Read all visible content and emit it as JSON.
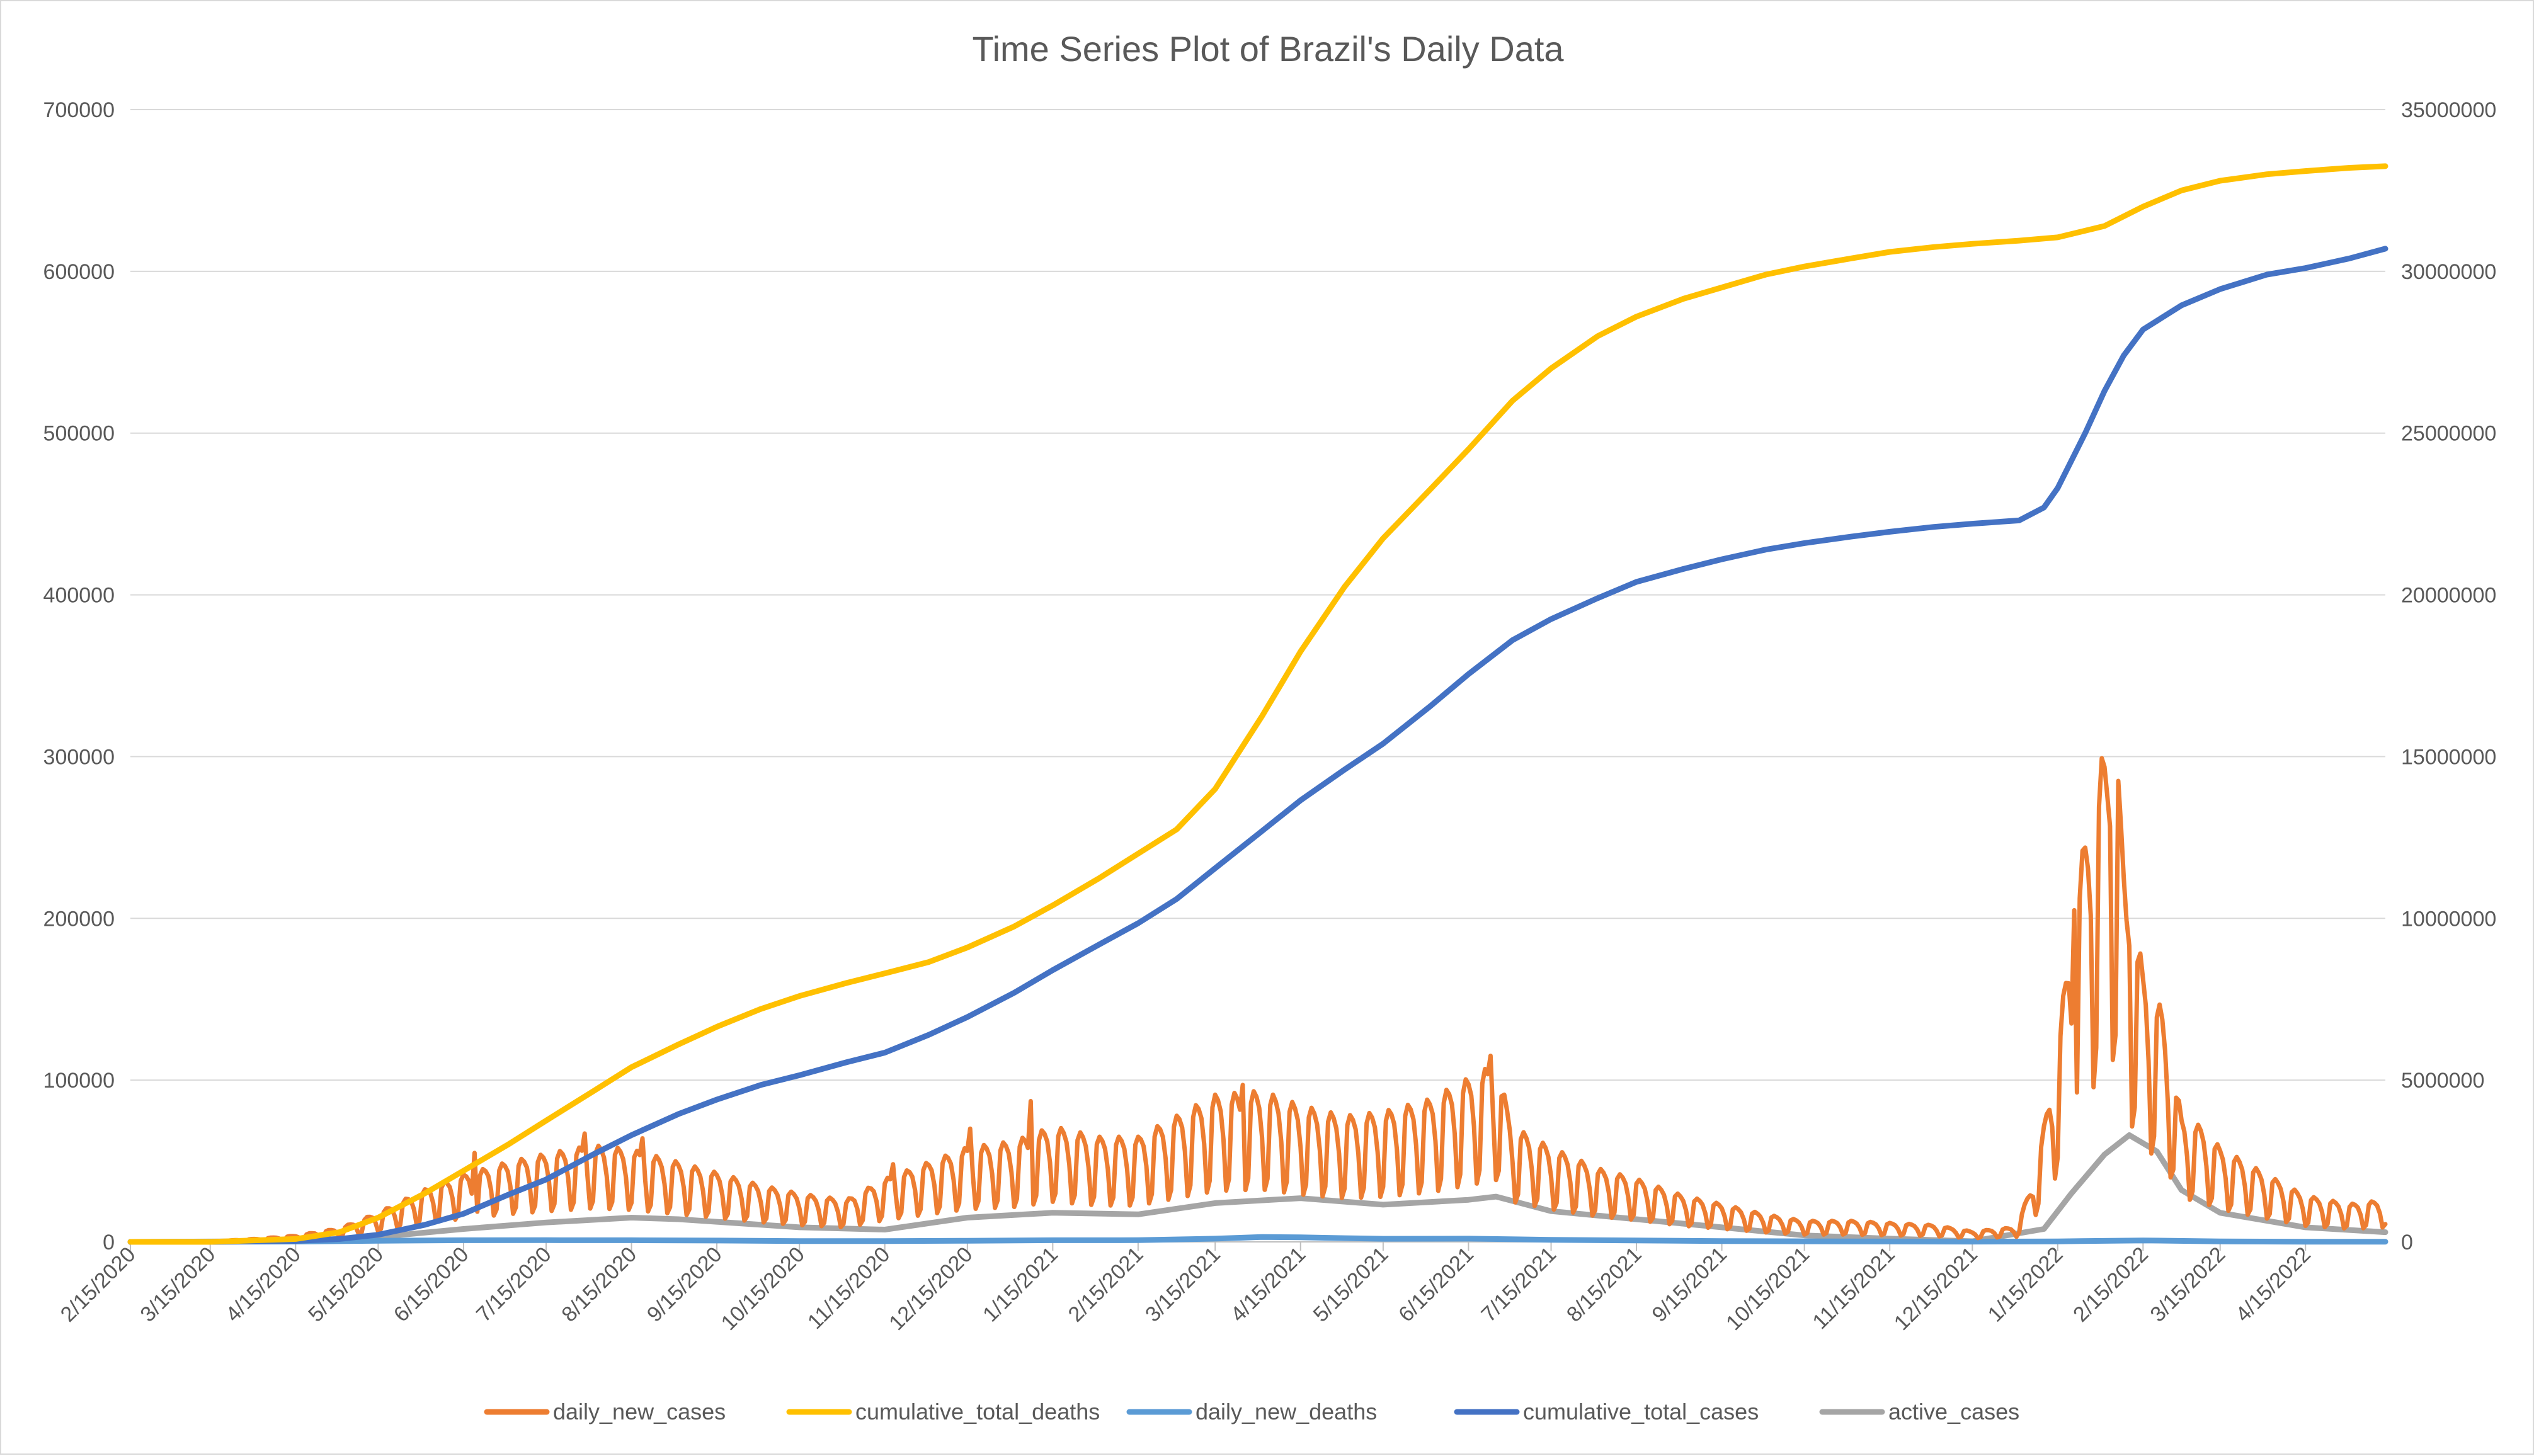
{
  "chart_data": {
    "type": "line",
    "title": "Time Series Plot of Brazil's Daily Data",
    "x_tick_labels": [
      "2/15/2020",
      "3/15/2020",
      "4/15/2020",
      "5/15/2020",
      "6/15/2020",
      "7/15/2020",
      "8/15/2020",
      "9/15/2020",
      "10/15/2020",
      "11/15/2020",
      "12/15/2020",
      "1/15/2021",
      "2/15/2021",
      "3/15/2021",
      "4/15/2021",
      "5/15/2021",
      "6/15/2021",
      "7/15/2021",
      "8/15/2021",
      "9/15/2021",
      "10/15/2021",
      "11/15/2021",
      "12/15/2021",
      "1/15/2022",
      "2/15/2022",
      "3/15/2022",
      "4/15/2022"
    ],
    "x_range": [
      "2020-02-15",
      "2022-05-14"
    ],
    "y_left": {
      "ylim": [
        0,
        700000
      ],
      "ticks": [
        "0",
        "100000",
        "200000",
        "300000",
        "400000",
        "500000",
        "600000",
        "700000"
      ]
    },
    "y_right": {
      "ylim": [
        0,
        35000000
      ],
      "ticks": [
        "0",
        "5000000",
        "10000000",
        "15000000",
        "20000000",
        "25000000",
        "30000000",
        "35000000"
      ]
    },
    "grid": true,
    "legend_position": "bottom",
    "series": [
      {
        "name": "daily_new_cases",
        "axis": "left",
        "color": "#ED7D31",
        "weekly_oscillation": true,
        "points": [
          [
            "2020-02-15",
            0
          ],
          [
            "2020-03-15",
            100
          ],
          [
            "2020-04-01",
            1500
          ],
          [
            "2020-04-15",
            3000
          ],
          [
            "2020-05-01",
            6500
          ],
          [
            "2020-05-15",
            14000
          ],
          [
            "2020-06-01",
            25000
          ],
          [
            "2020-06-15",
            32000
          ],
          [
            "2020-07-01",
            38000
          ],
          [
            "2020-07-15",
            42000
          ],
          [
            "2020-08-01",
            46000
          ],
          [
            "2020-08-15",
            44000
          ],
          [
            "2020-09-01",
            38000
          ],
          [
            "2020-09-15",
            33000
          ],
          [
            "2020-10-01",
            27000
          ],
          [
            "2020-10-15",
            23000
          ],
          [
            "2020-11-01",
            20000
          ],
          [
            "2020-11-15",
            30000
          ],
          [
            "2020-12-01",
            38000
          ],
          [
            "2020-12-15",
            45000
          ],
          [
            "2021-01-01",
            48000
          ],
          [
            "2021-01-15",
            55000
          ],
          [
            "2021-02-01",
            50000
          ],
          [
            "2021-02-15",
            50000
          ],
          [
            "2021-03-01",
            60000
          ],
          [
            "2021-03-15",
            70000
          ],
          [
            "2021-04-01",
            72000
          ],
          [
            "2021-04-15",
            65000
          ],
          [
            "2021-05-01",
            60000
          ],
          [
            "2021-05-15",
            62000
          ],
          [
            "2021-06-01",
            68000
          ],
          [
            "2021-06-15",
            78000
          ],
          [
            "2021-06-25",
            85000
          ],
          [
            "2021-07-01",
            55000
          ],
          [
            "2021-07-15",
            45000
          ],
          [
            "2021-08-01",
            35000
          ],
          [
            "2021-08-15",
            30000
          ],
          [
            "2021-09-01",
            22000
          ],
          [
            "2021-09-15",
            18000
          ],
          [
            "2021-10-01",
            13000
          ],
          [
            "2021-10-15",
            10000
          ],
          [
            "2021-11-01",
            10000
          ],
          [
            "2021-11-15",
            9000
          ],
          [
            "2021-12-01",
            8000
          ],
          [
            "2021-12-15",
            5000
          ],
          [
            "2021-12-31",
            7000
          ],
          [
            "2022-01-05",
            25000
          ],
          [
            "2022-01-10",
            55000
          ],
          [
            "2022-01-15",
            95000
          ],
          [
            "2022-01-20",
            150000
          ],
          [
            "2022-01-25",
            195000
          ],
          [
            "2022-01-31",
            230000
          ],
          [
            "2022-02-04",
            250000
          ],
          [
            "2022-02-08",
            180000
          ],
          [
            "2022-02-15",
            130000
          ],
          [
            "2022-02-22",
            110000
          ],
          [
            "2022-03-01",
            60000
          ],
          [
            "2022-03-08",
            55000
          ],
          [
            "2022-03-15",
            45000
          ],
          [
            "2022-04-01",
            32000
          ],
          [
            "2022-04-15",
            22000
          ],
          [
            "2022-05-01",
            18000
          ],
          [
            "2022-05-14",
            20000
          ]
        ],
        "spikes": [
          [
            "2020-06-19",
            55000
          ],
          [
            "2020-07-29",
            67000
          ],
          [
            "2020-08-19",
            64000
          ],
          [
            "2020-11-18",
            48000
          ],
          [
            "2020-12-16",
            70000
          ],
          [
            "2021-01-07",
            87000
          ],
          [
            "2021-03-25",
            97000
          ],
          [
            "2021-06-23",
            115000
          ],
          [
            "2022-01-21",
            205000
          ],
          [
            "2022-01-27",
            202000
          ],
          [
            "2022-02-03",
            257000
          ],
          [
            "2022-02-06",
            285000
          ],
          [
            "2022-02-10",
            183000
          ]
        ]
      },
      {
        "name": "cumulative_total_deaths",
        "axis": "left",
        "color": "#FFC000",
        "points": [
          [
            "2020-02-15",
            0
          ],
          [
            "2020-03-15",
            0
          ],
          [
            "2020-04-15",
            1800
          ],
          [
            "2020-05-01",
            6000
          ],
          [
            "2020-05-15",
            15000
          ],
          [
            "2020-06-01",
            30000
          ],
          [
            "2020-06-15",
            44000
          ],
          [
            "2020-07-01",
            60000
          ],
          [
            "2020-07-15",
            75000
          ],
          [
            "2020-08-01",
            93000
          ],
          [
            "2020-08-15",
            108000
          ],
          [
            "2020-09-01",
            122000
          ],
          [
            "2020-09-15",
            133000
          ],
          [
            "2020-10-01",
            144000
          ],
          [
            "2020-10-15",
            152000
          ],
          [
            "2020-11-01",
            160000
          ],
          [
            "2020-11-15",
            166000
          ],
          [
            "2020-12-01",
            173000
          ],
          [
            "2020-12-15",
            182000
          ],
          [
            "2021-01-01",
            195000
          ],
          [
            "2021-01-15",
            208000
          ],
          [
            "2021-02-01",
            225000
          ],
          [
            "2021-02-15",
            240000
          ],
          [
            "2021-03-01",
            255000
          ],
          [
            "2021-03-15",
            280000
          ],
          [
            "2021-04-01",
            325000
          ],
          [
            "2021-04-15",
            365000
          ],
          [
            "2021-05-01",
            405000
          ],
          [
            "2021-05-15",
            435000
          ],
          [
            "2021-06-01",
            465000
          ],
          [
            "2021-06-15",
            490000
          ],
          [
            "2021-07-01",
            520000
          ],
          [
            "2021-07-15",
            540000
          ],
          [
            "2021-08-01",
            560000
          ],
          [
            "2021-08-15",
            572000
          ],
          [
            "2021-09-01",
            583000
          ],
          [
            "2021-09-15",
            590000
          ],
          [
            "2021-10-01",
            598000
          ],
          [
            "2021-10-15",
            603000
          ],
          [
            "2021-11-01",
            608000
          ],
          [
            "2021-11-15",
            612000
          ],
          [
            "2021-12-01",
            615000
          ],
          [
            "2021-12-15",
            617000
          ],
          [
            "2022-01-01",
            619000
          ],
          [
            "2022-01-15",
            621000
          ],
          [
            "2022-02-01",
            628000
          ],
          [
            "2022-02-15",
            640000
          ],
          [
            "2022-03-01",
            650000
          ],
          [
            "2022-03-15",
            656000
          ],
          [
            "2022-04-01",
            660000
          ],
          [
            "2022-04-15",
            662000
          ],
          [
            "2022-05-01",
            664000
          ],
          [
            "2022-05-14",
            665000
          ]
        ]
      },
      {
        "name": "daily_new_deaths",
        "axis": "left",
        "color": "#5B9BD5",
        "points": [
          [
            "2020-02-15",
            0
          ],
          [
            "2020-04-15",
            200
          ],
          [
            "2020-05-15",
            700
          ],
          [
            "2020-06-15",
            1000
          ],
          [
            "2020-07-15",
            1050
          ],
          [
            "2020-08-15",
            1000
          ],
          [
            "2020-09-15",
            800
          ],
          [
            "2020-10-15",
            500
          ],
          [
            "2020-11-15",
            450
          ],
          [
            "2020-12-15",
            700
          ],
          [
            "2021-01-15",
            1000
          ],
          [
            "2021-02-15",
            1050
          ],
          [
            "2021-03-15",
            2000
          ],
          [
            "2021-04-01",
            3000
          ],
          [
            "2021-04-15",
            2800
          ],
          [
            "2021-05-01",
            2300
          ],
          [
            "2021-05-15",
            1900
          ],
          [
            "2021-06-15",
            2000
          ],
          [
            "2021-07-15",
            1300
          ],
          [
            "2021-08-15",
            850
          ],
          [
            "2021-09-15",
            500
          ],
          [
            "2021-10-15",
            350
          ],
          [
            "2021-11-15",
            250
          ],
          [
            "2021-12-15",
            150
          ],
          [
            "2022-01-15",
            300
          ],
          [
            "2022-02-15",
            900
          ],
          [
            "2022-03-15",
            300
          ],
          [
            "2022-04-15",
            120
          ],
          [
            "2022-05-14",
            100
          ]
        ]
      },
      {
        "name": "cumulative_total_cases",
        "axis": "right",
        "color": "#4472C4",
        "points": [
          [
            "2020-02-15",
            0
          ],
          [
            "2020-03-15",
            0
          ],
          [
            "2020-04-15",
            30000
          ],
          [
            "2020-05-01",
            90000
          ],
          [
            "2020-05-15",
            220000
          ],
          [
            "2020-06-01",
            530000
          ],
          [
            "2020-06-15",
            870000
          ],
          [
            "2020-07-01",
            1450000
          ],
          [
            "2020-07-15",
            1930000
          ],
          [
            "2020-08-01",
            2700000
          ],
          [
            "2020-08-15",
            3300000
          ],
          [
            "2020-09-01",
            3950000
          ],
          [
            "2020-09-15",
            4400000
          ],
          [
            "2020-10-01",
            4850000
          ],
          [
            "2020-10-15",
            5150000
          ],
          [
            "2020-11-01",
            5550000
          ],
          [
            "2020-11-15",
            5850000
          ],
          [
            "2020-12-01",
            6400000
          ],
          [
            "2020-12-15",
            6950000
          ],
          [
            "2021-01-01",
            7700000
          ],
          [
            "2021-01-15",
            8400000
          ],
          [
            "2021-02-01",
            9200000
          ],
          [
            "2021-02-15",
            9850000
          ],
          [
            "2021-03-01",
            10600000
          ],
          [
            "2021-03-15",
            11550000
          ],
          [
            "2021-04-01",
            12700000
          ],
          [
            "2021-04-15",
            13650000
          ],
          [
            "2021-05-01",
            14600000
          ],
          [
            "2021-05-15",
            15400000
          ],
          [
            "2021-06-01",
            16550000
          ],
          [
            "2021-06-15",
            17550000
          ],
          [
            "2021-07-01",
            18600000
          ],
          [
            "2021-07-15",
            19250000
          ],
          [
            "2021-08-01",
            19900000
          ],
          [
            "2021-08-15",
            20400000
          ],
          [
            "2021-09-01",
            20800000
          ],
          [
            "2021-09-15",
            21100000
          ],
          [
            "2021-10-01",
            21400000
          ],
          [
            "2021-10-15",
            21600000
          ],
          [
            "2021-11-01",
            21800000
          ],
          [
            "2021-11-15",
            21950000
          ],
          [
            "2021-12-01",
            22100000
          ],
          [
            "2021-12-15",
            22200000
          ],
          [
            "2022-01-01",
            22300000
          ],
          [
            "2022-01-10",
            22700000
          ],
          [
            "2022-01-15",
            23300000
          ],
          [
            "2022-01-25",
            25000000
          ],
          [
            "2022-02-01",
            26300000
          ],
          [
            "2022-02-08",
            27400000
          ],
          [
            "2022-02-15",
            28200000
          ],
          [
            "2022-03-01",
            28950000
          ],
          [
            "2022-03-15",
            29450000
          ],
          [
            "2022-04-01",
            29900000
          ],
          [
            "2022-04-15",
            30100000
          ],
          [
            "2022-05-01",
            30400000
          ],
          [
            "2022-05-14",
            30700000
          ]
        ]
      },
      {
        "name": "active_cases",
        "axis": "right",
        "color": "#A5A5A5",
        "points": [
          [
            "2020-02-15",
            0
          ],
          [
            "2020-04-15",
            25000
          ],
          [
            "2020-05-15",
            150000
          ],
          [
            "2020-06-15",
            400000
          ],
          [
            "2020-07-15",
            600000
          ],
          [
            "2020-08-15",
            750000
          ],
          [
            "2020-09-01",
            700000
          ],
          [
            "2020-09-15",
            620000
          ],
          [
            "2020-10-15",
            450000
          ],
          [
            "2020-11-15",
            380000
          ],
          [
            "2020-12-15",
            750000
          ],
          [
            "2021-01-15",
            900000
          ],
          [
            "2021-02-15",
            850000
          ],
          [
            "2021-03-15",
            1200000
          ],
          [
            "2021-04-15",
            1350000
          ],
          [
            "2021-05-15",
            1150000
          ],
          [
            "2021-06-15",
            1300000
          ],
          [
            "2021-06-25",
            1400000
          ],
          [
            "2021-07-15",
            950000
          ],
          [
            "2021-08-15",
            700000
          ],
          [
            "2021-09-15",
            450000
          ],
          [
            "2021-10-15",
            200000
          ],
          [
            "2021-11-15",
            100000
          ],
          [
            "2021-12-15",
            20000
          ],
          [
            "2022-01-10",
            400000
          ],
          [
            "2022-01-20",
            1500000
          ],
          [
            "2022-02-01",
            2700000
          ],
          [
            "2022-02-10",
            3300000
          ],
          [
            "2022-02-20",
            2800000
          ],
          [
            "2022-03-01",
            1600000
          ],
          [
            "2022-03-15",
            900000
          ],
          [
            "2022-04-15",
            450000
          ],
          [
            "2022-05-14",
            300000
          ]
        ]
      }
    ]
  }
}
